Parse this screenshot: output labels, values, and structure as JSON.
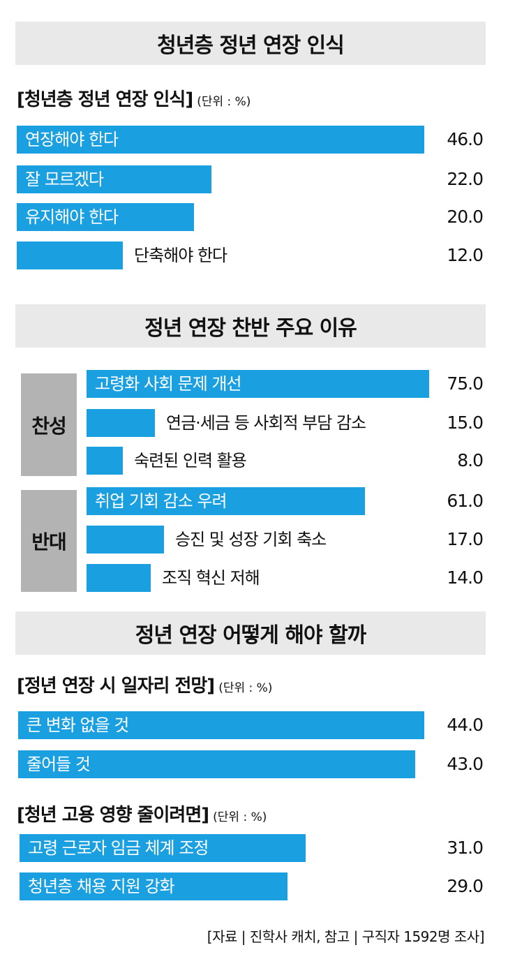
{
  "chart_data": [
    {
      "type": "bar",
      "orientation": "horizontal",
      "title": "청년층 정년 연장 인식",
      "subtitle": "[청년층 정년 연장 인식]",
      "unit": "(단위 : %)",
      "categories": [
        "연장해야 한다",
        "잘 모르겠다",
        "유지해야 한다",
        "단축해야 한다"
      ],
      "values": [
        46.0,
        22.0,
        20.0,
        12.0
      ],
      "value_labels": [
        "46.0",
        "22.0",
        "20.0",
        "12.0"
      ]
    },
    {
      "type": "bar",
      "orientation": "horizontal",
      "title": "정년 연장 찬반 주요 이유",
      "groups": [
        {
          "name": "찬성",
          "categories": [
            "고령화 사회 문제 개선",
            "연금·세금 등 사회적 부담 감소",
            "숙련된 인력 활용"
          ],
          "values": [
            75.0,
            15.0,
            8.0
          ],
          "value_labels": [
            "75.0",
            "15.0",
            "8.0"
          ]
        },
        {
          "name": "반대",
          "categories": [
            "취업 기회 감소 우려",
            "승진 및 성장 기회 축소",
            "조직 혁신 저해"
          ],
          "values": [
            61.0,
            17.0,
            14.0
          ],
          "value_labels": [
            "61.0",
            "17.0",
            "14.0"
          ]
        }
      ]
    },
    {
      "type": "bar",
      "orientation": "horizontal",
      "title": "정년 연장 어떻게 해야 할까",
      "subtitle": "[정년 연장 시 일자리 전망]",
      "unit": "(단위 : %)",
      "categories": [
        "큰 변화 없을 것",
        "줄어들 것"
      ],
      "values": [
        44.0,
        43.0
      ],
      "value_labels": [
        "44.0",
        "43.0"
      ]
    },
    {
      "type": "bar",
      "orientation": "horizontal",
      "subtitle": "[청년 고용 영향 줄이려면]",
      "unit": "(단위 : %)",
      "categories": [
        "고령 근로자 임금 체계 조정",
        "청년층 채용 지원 강화"
      ],
      "values": [
        31.0,
        29.0
      ],
      "value_labels": [
        "31.0",
        "29.0"
      ]
    }
  ],
  "source": "[자료 | 진학사 캐치, 참고 | 구직자 1592명 조사]",
  "colors": {
    "bar": "#1a9fe0",
    "header_bg": "#e9e9e9",
    "group_bg": "#b3b3b3"
  }
}
